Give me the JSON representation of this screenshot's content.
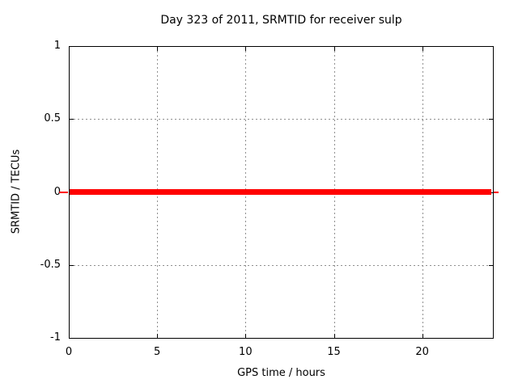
{
  "chart_data": {
    "type": "line",
    "title": "Day 323 of 2011, SRMTID for receiver sulp",
    "xlabel": "GPS time / hours",
    "ylabel": "SRMTID / TECUs",
    "xlim": [
      0,
      24
    ],
    "ylim": [
      -1,
      1
    ],
    "xticks": {
      "values": [
        0,
        5,
        10,
        15,
        20
      ],
      "labels": [
        "0",
        "5",
        "10",
        "15",
        "20"
      ]
    },
    "yticks": {
      "values": [
        1,
        0.5,
        0,
        -0.5,
        -1
      ],
      "labels": [
        "1",
        "0.5",
        "0",
        "-0.5",
        "-1"
      ]
    },
    "grid": {
      "show": true,
      "style": "dotted",
      "color": "#909090"
    },
    "legend": {
      "show": false
    },
    "series": [
      {
        "name": "SRMTID",
        "color": "#ff0000",
        "x": [
          0,
          23.9
        ],
        "y": [
          0,
          0
        ]
      }
    ]
  },
  "colors": {
    "background": "#ffffff",
    "border": "#000000",
    "text": "#000000",
    "grid": "#909090",
    "line": "#ff0000"
  }
}
